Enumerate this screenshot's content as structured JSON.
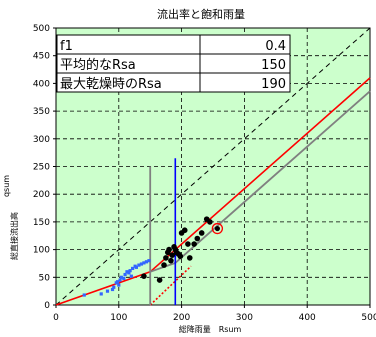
{
  "chart_data": {
    "type": "scatter",
    "title": "流出率と飽和雨量",
    "xlabel": "総降雨量　Rsum",
    "ylabel": "総直接流出高",
    "ylabel_small": "qsum",
    "xlim": [
      0,
      500
    ],
    "ylim": [
      0,
      500
    ],
    "x_ticks": [
      "0",
      "100",
      "200",
      "300",
      "400",
      "500"
    ],
    "y_ticks": [
      "0",
      "50",
      "100",
      "150",
      "200",
      "250",
      "300",
      "350",
      "400",
      "450",
      "500"
    ],
    "grid": true,
    "params_table": [
      {
        "label": "f1",
        "value": "0.4"
      },
      {
        "label": "平均的なRsa",
        "value": "150"
      },
      {
        "label": "最大乾燥時のRsa",
        "value": "190"
      }
    ],
    "colors": {
      "background": "#ccffcc",
      "blue_points": "#3366ff",
      "black_points": "#000000",
      "red_line": "#ff0000",
      "gray_line": "#808080",
      "blue_vline": "#0000ff",
      "highlight": "#ff0000"
    },
    "series": [
      {
        "marker": "blue-square",
        "points": [
          [
            45,
            18
          ],
          [
            72,
            20
          ],
          [
            82,
            25
          ],
          [
            90,
            28
          ],
          [
            92,
            32
          ],
          [
            96,
            40
          ],
          [
            98,
            42
          ],
          [
            100,
            36
          ],
          [
            102,
            45
          ],
          [
            104,
            50
          ],
          [
            108,
            48
          ],
          [
            110,
            55
          ],
          [
            113,
            60
          ],
          [
            116,
            58
          ],
          [
            118,
            62
          ],
          [
            120,
            52
          ],
          [
            122,
            66
          ],
          [
            126,
            70
          ],
          [
            128,
            68
          ],
          [
            132,
            72
          ],
          [
            136,
            74
          ],
          [
            140,
            76
          ],
          [
            144,
            78
          ],
          [
            148,
            80
          ]
        ]
      },
      {
        "marker": "black-circle",
        "points": [
          [
            140,
            52
          ],
          [
            165,
            45
          ],
          [
            172,
            72
          ],
          [
            175,
            85
          ],
          [
            178,
            95
          ],
          [
            180,
            100
          ],
          [
            183,
            80
          ],
          [
            185,
            90
          ],
          [
            188,
            105
          ],
          [
            190,
            100
          ],
          [
            192,
            95
          ],
          [
            195,
            92
          ],
          [
            198,
            88
          ],
          [
            200,
            130
          ],
          [
            205,
            135
          ],
          [
            210,
            110
          ],
          [
            213,
            85
          ],
          [
            220,
            110
          ],
          [
            225,
            120
          ],
          [
            232,
            130
          ],
          [
            240,
            155
          ],
          [
            245,
            150
          ]
        ]
      },
      {
        "marker": "red-circle",
        "points": [
          [
            257,
            138
          ]
        ]
      }
    ],
    "lines": [
      {
        "name": "1:1",
        "style": "black-dashed",
        "points": [
          [
            0,
            0
          ],
          [
            500,
            500
          ]
        ]
      },
      {
        "name": "red-segment-1",
        "style": "red-solid",
        "points": [
          [
            0,
            0
          ],
          [
            150,
            60
          ]
        ]
      },
      {
        "name": "red-segment-2",
        "style": "red-solid",
        "points": [
          [
            150,
            60
          ],
          [
            500,
            410
          ]
        ]
      },
      {
        "name": "red-dotted",
        "style": "red-dotted",
        "points": [
          [
            150,
            0
          ],
          [
            215,
            70
          ]
        ]
      },
      {
        "name": "gray",
        "style": "gray-solid",
        "points": [
          [
            150,
            60
          ],
          [
            190,
            76
          ],
          [
            500,
            386
          ]
        ]
      },
      {
        "name": "gray-vline",
        "style": "gray-solid",
        "points": [
          [
            150,
            0
          ],
          [
            150,
            250
          ]
        ]
      },
      {
        "name": "blue-vline",
        "style": "blue-solid",
        "points": [
          [
            190,
            0
          ],
          [
            190,
            265
          ]
        ]
      }
    ]
  }
}
